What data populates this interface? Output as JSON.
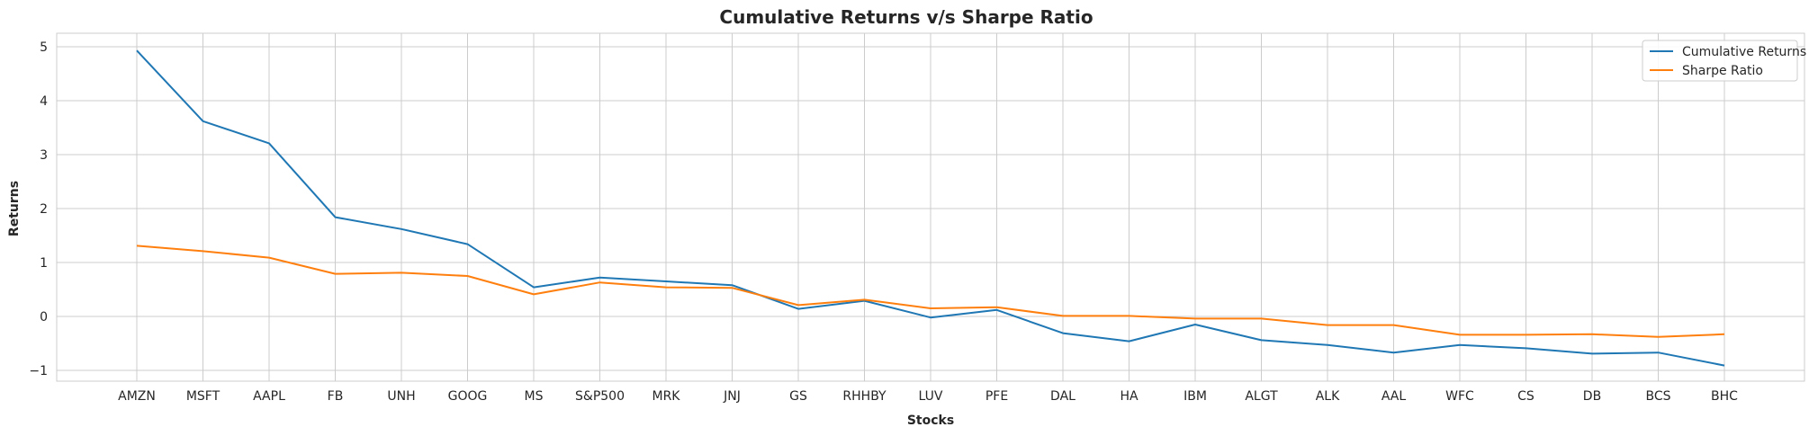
{
  "chart_data": {
    "type": "line",
    "title": "Cumulative Returns v/s Sharpe Ratio",
    "xlabel": "Stocks",
    "ylabel": "Returns",
    "categories": [
      "AMZN",
      "MSFT",
      "AAPL",
      "FB",
      "UNH",
      "GOOG",
      "MS",
      "S&P500",
      "MRK",
      "JNJ",
      "GS",
      "RHHBY",
      "LUV",
      "PFE",
      "DAL",
      "HA",
      "IBM",
      "ALGT",
      "ALK",
      "AAL",
      "WFC",
      "CS",
      "DB",
      "BCS",
      "BHC"
    ],
    "series": [
      {
        "name": "Cumulative Returns",
        "color": "#1f77b4",
        "values": [
          4.93,
          3.62,
          3.21,
          1.84,
          1.62,
          1.34,
          0.54,
          0.72,
          0.65,
          0.58,
          0.14,
          0.29,
          -0.02,
          0.12,
          -0.31,
          -0.46,
          -0.15,
          -0.44,
          -0.53,
          -0.67,
          -0.53,
          -0.59,
          -0.69,
          -0.67,
          -0.91
        ]
      },
      {
        "name": "Sharpe Ratio",
        "color": "#ff7f0e",
        "values": [
          1.31,
          1.21,
          1.09,
          0.79,
          0.81,
          0.75,
          0.41,
          0.63,
          0.54,
          0.53,
          0.21,
          0.31,
          0.15,
          0.17,
          0.01,
          0.01,
          -0.04,
          -0.04,
          -0.16,
          -0.16,
          -0.34,
          -0.34,
          -0.33,
          -0.38,
          -0.33
        ]
      }
    ],
    "yticks": [
      -1,
      0,
      1,
      2,
      3,
      4,
      5
    ],
    "ylim": [
      -1.2,
      5.25
    ],
    "grid": true,
    "legend_position": "top-right"
  }
}
